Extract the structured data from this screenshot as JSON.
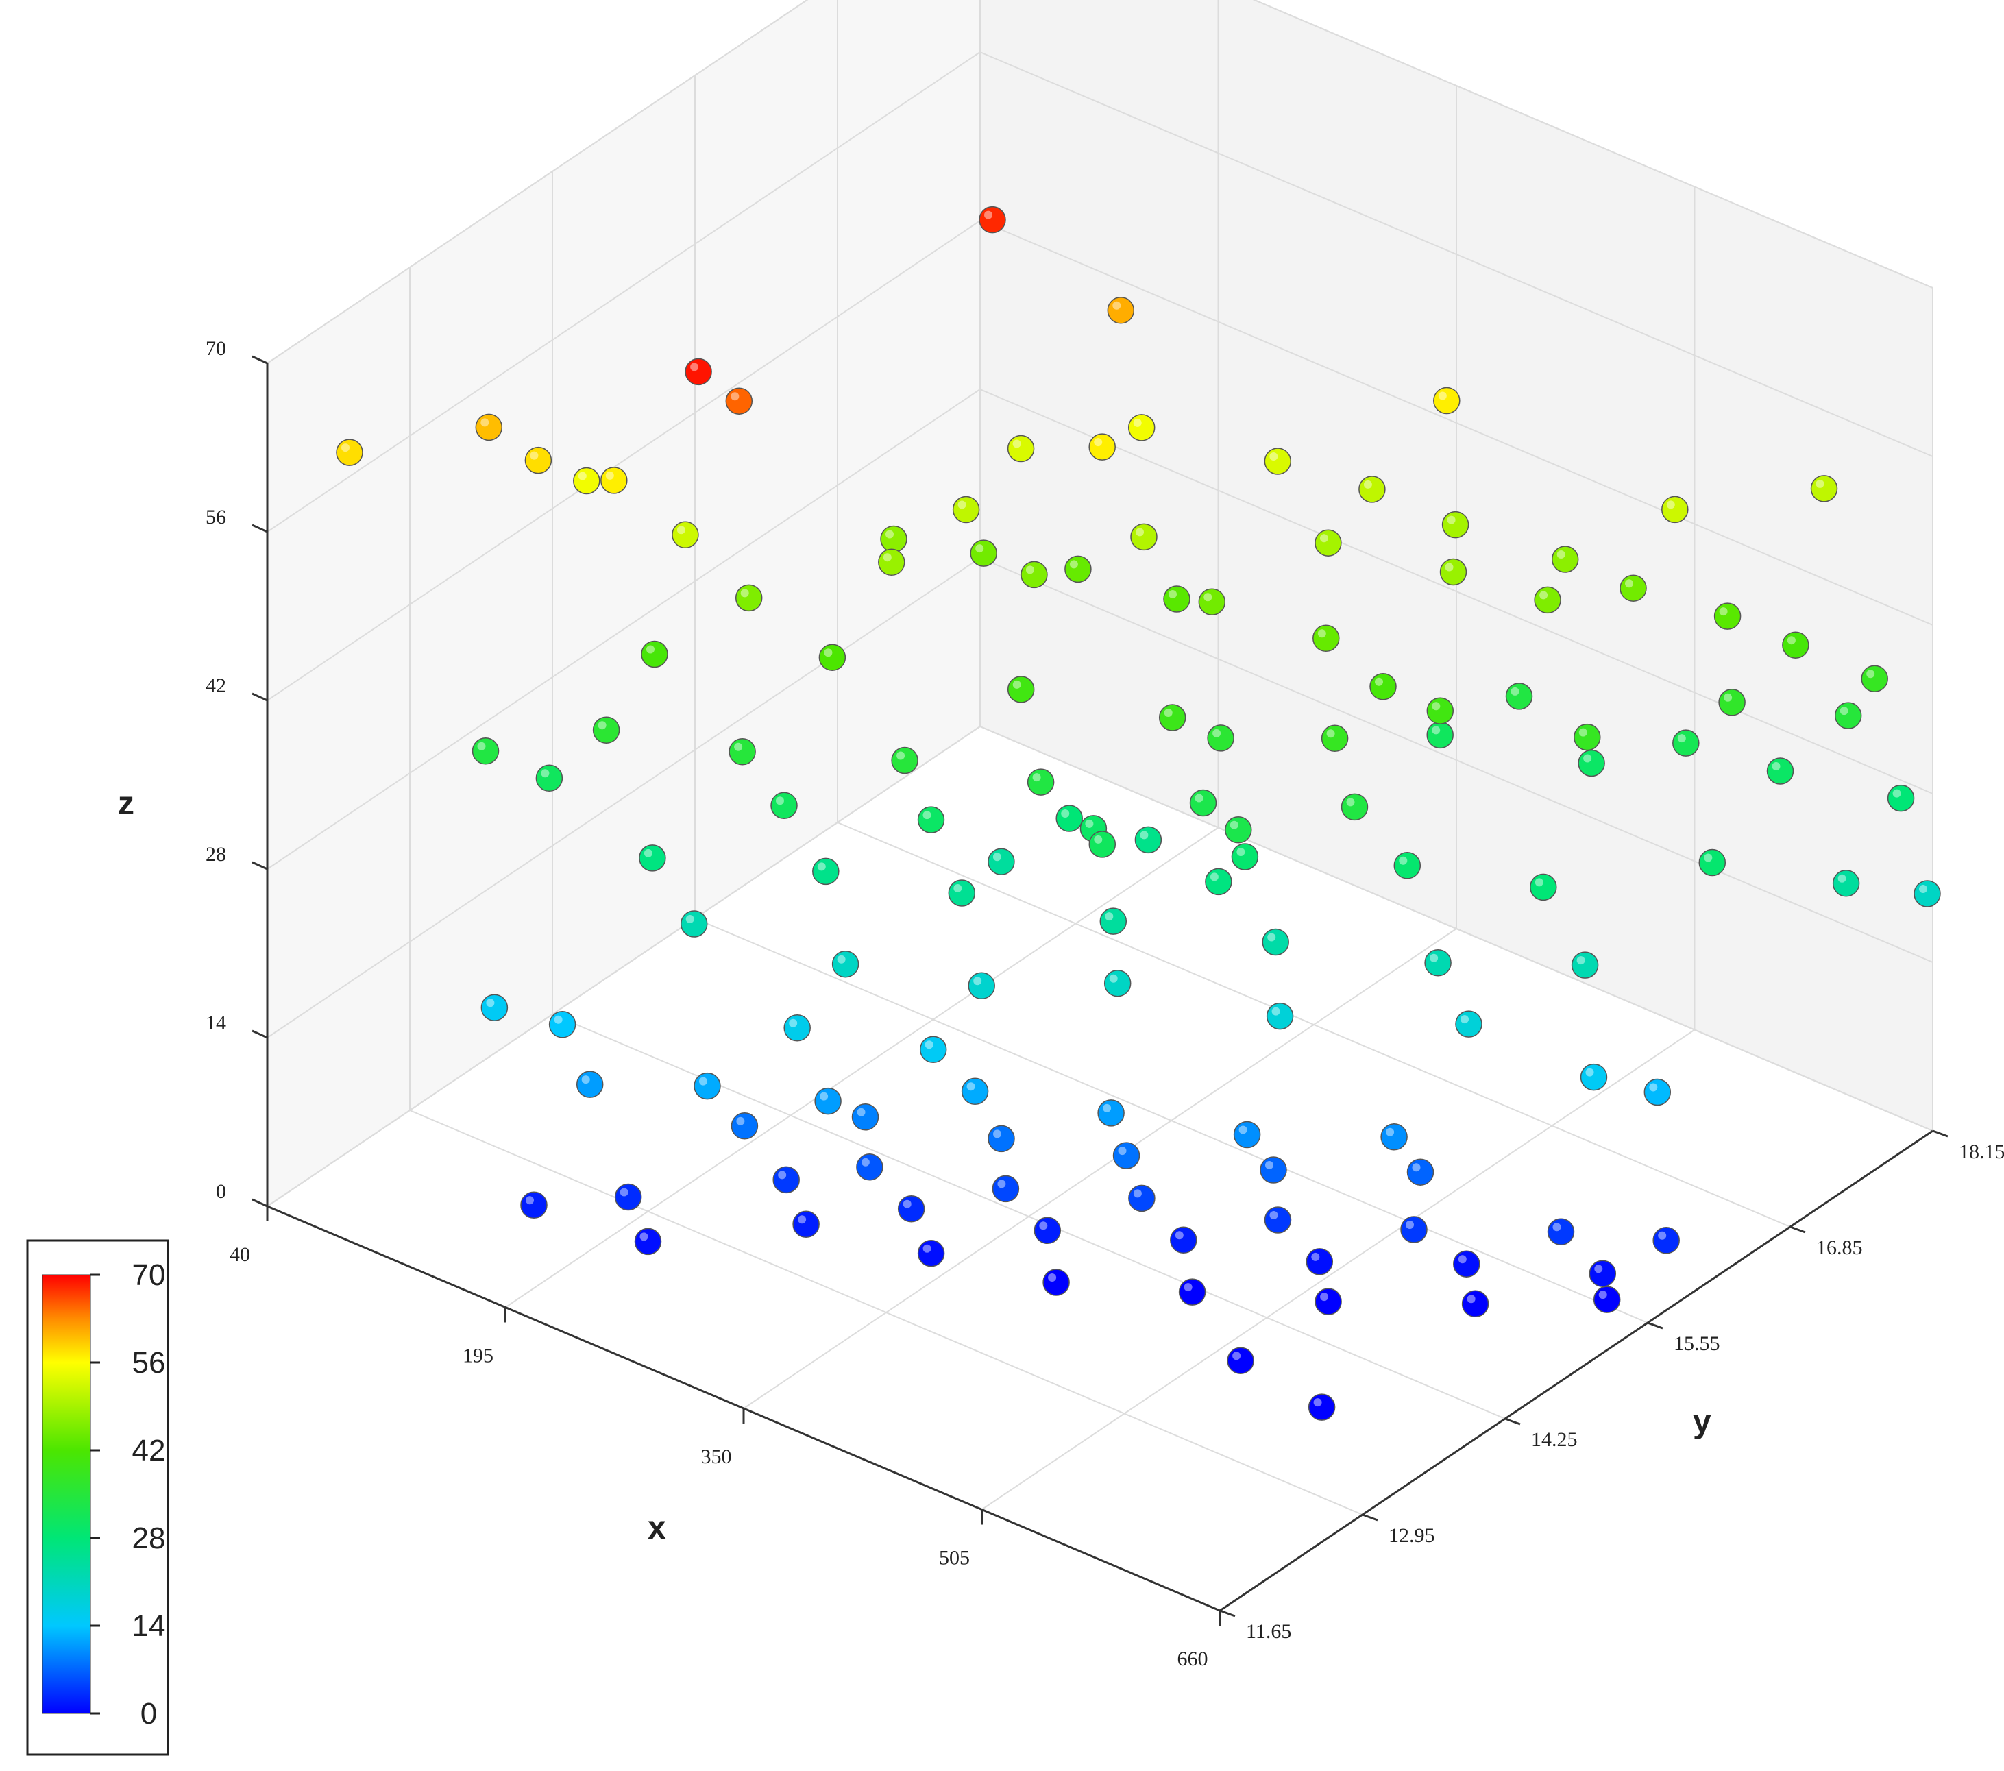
{
  "chart_data": {
    "type": "scatter",
    "title": "",
    "xlabel": "x",
    "ylabel": "y",
    "zlabel": "z",
    "xlim": [
      40,
      660
    ],
    "ylim": [
      11.65,
      18.15
    ],
    "zlim": [
      0,
      70
    ],
    "x_ticks": [
      "40",
      "195",
      "350",
      "505",
      "660"
    ],
    "y_ticks": [
      "11.65",
      "12.95",
      "14.25",
      "15.55",
      "16.85",
      "18.15"
    ],
    "z_ticks": [
      "0",
      "14",
      "28",
      "42",
      "56",
      "70"
    ],
    "colorbar": {
      "ticks": [
        "0",
        "14",
        "28",
        "42",
        "56",
        "70"
      ],
      "range": [
        0,
        70
      ],
      "colormap": "jet",
      "placement": "bottom-left"
    },
    "grid": true,
    "points": [
      [
        210,
        13.2,
        69
      ],
      [
        215,
        13.5,
        65
      ],
      [
        230,
        15.6,
        68
      ],
      [
        40,
        12.4,
        58
      ],
      [
        285,
        16.0,
        61
      ],
      [
        95,
        12.9,
        60
      ],
      [
        120,
        13.0,
        58
      ],
      [
        155,
        13.2,
        57
      ],
      [
        330,
        15.2,
        57
      ],
      [
        440,
        16.8,
        57
      ],
      [
        560,
        17.2,
        52
      ],
      [
        600,
        18.0,
        51
      ],
      [
        130,
        13.3,
        55
      ],
      [
        180,
        13.5,
        52
      ],
      [
        270,
        14.8,
        51
      ],
      [
        350,
        15.3,
        50
      ],
      [
        420,
        16.0,
        49
      ],
      [
        480,
        16.3,
        48
      ],
      [
        520,
        16.6,
        46
      ],
      [
        250,
        14.4,
        48
      ],
      [
        300,
        15.0,
        46
      ],
      [
        380,
        15.5,
        45
      ],
      [
        440,
        15.7,
        44
      ],
      [
        200,
        13.8,
        46
      ],
      [
        160,
        13.5,
        41
      ],
      [
        240,
        14.0,
        42
      ],
      [
        320,
        14.6,
        40
      ],
      [
        390,
        15.0,
        39
      ],
      [
        460,
        15.5,
        38
      ],
      [
        500,
        15.9,
        40
      ],
      [
        560,
        16.4,
        38
      ],
      [
        150,
        13.2,
        36
      ],
      [
        210,
        13.6,
        35
      ],
      [
        280,
        14.1,
        35
      ],
      [
        340,
        14.5,
        34
      ],
      [
        410,
        15.0,
        33
      ],
      [
        480,
        15.4,
        34
      ],
      [
        100,
        12.8,
        34
      ],
      [
        120,
        13.1,
        31
      ],
      [
        230,
        13.7,
        31
      ],
      [
        290,
        14.2,
        30
      ],
      [
        360,
        14.7,
        30
      ],
      [
        430,
        15.1,
        29
      ],
      [
        500,
        15.6,
        29
      ],
      [
        560,
        16.0,
        28
      ],
      [
        620,
        16.7,
        29
      ],
      [
        650,
        17.5,
        24
      ],
      [
        180,
        13.2,
        27
      ],
      [
        250,
        13.8,
        26
      ],
      [
        310,
        14.2,
        25
      ],
      [
        380,
        14.6,
        24
      ],
      [
        450,
        15.1,
        23
      ],
      [
        520,
        15.6,
        22
      ],
      [
        580,
        16.1,
        22
      ],
      [
        200,
        13.3,
        22
      ],
      [
        270,
        13.7,
        20
      ],
      [
        330,
        14.1,
        19
      ],
      [
        390,
        14.5,
        20
      ],
      [
        460,
        15.0,
        18
      ],
      [
        540,
        15.6,
        18
      ],
      [
        260,
        13.4,
        16
      ],
      [
        320,
        13.8,
        15
      ],
      [
        120,
        12.6,
        15
      ],
      [
        150,
        12.8,
        14
      ],
      [
        175,
        12.7,
        11
      ],
      [
        600,
        15.9,
        15
      ],
      [
        620,
        16.2,
        13
      ],
      [
        230,
        13.0,
        12
      ],
      [
        280,
        13.4,
        11
      ],
      [
        340,
        13.9,
        12
      ],
      [
        400,
        14.3,
        11
      ],
      [
        460,
        14.7,
        10
      ],
      [
        520,
        15.2,
        10
      ],
      [
        290,
        13.6,
        9
      ],
      [
        350,
        14.0,
        8
      ],
      [
        410,
        14.3,
        8
      ],
      [
        470,
        14.8,
        7
      ],
      [
        530,
        15.3,
        7
      ],
      [
        240,
        13.2,
        8
      ],
      [
        300,
        13.5,
        6
      ],
      [
        360,
        13.9,
        5
      ],
      [
        420,
        14.3,
        5
      ],
      [
        480,
        14.7,
        4
      ],
      [
        540,
        15.1,
        4
      ],
      [
        600,
        15.6,
        4
      ],
      [
        640,
        16.0,
        3
      ],
      [
        260,
        13.3,
        4
      ],
      [
        320,
        13.6,
        3
      ],
      [
        380,
        14.0,
        2
      ],
      [
        440,
        14.4,
        2
      ],
      [
        500,
        14.8,
        1
      ],
      [
        560,
        15.3,
        1
      ],
      [
        620,
        15.7,
        1
      ],
      [
        280,
        13.2,
        2
      ],
      [
        340,
        13.5,
        1
      ],
      [
        400,
        13.8,
        0
      ],
      [
        460,
        14.2,
        0
      ],
      [
        520,
        14.6,
        0
      ],
      [
        580,
        15.1,
        0
      ],
      [
        630,
        15.6,
        0
      ],
      [
        200,
        12.7,
        3
      ],
      [
        160,
        12.4,
        2
      ],
      [
        220,
        12.6,
        1
      ],
      [
        520,
        13.8,
        0
      ],
      [
        580,
        13.7,
        0
      ],
      [
        330,
        14.9,
        28
      ],
      [
        360,
        15.2,
        26
      ],
      [
        300,
        14.7,
        24
      ],
      [
        420,
        15.0,
        27
      ],
      [
        380,
        14.5,
        31
      ],
      [
        440,
        14.9,
        33
      ],
      [
        400,
        15.3,
        36
      ],
      [
        470,
        15.8,
        41
      ],
      [
        350,
        15.6,
        43
      ],
      [
        300,
        15.4,
        44
      ],
      [
        260,
        15.1,
        45
      ],
      [
        230,
        14.7,
        47
      ],
      [
        270,
        15.3,
        53
      ],
      [
        320,
        15.7,
        55
      ],
      [
        380,
        16.1,
        53
      ],
      [
        420,
        16.4,
        51
      ],
      [
        460,
        16.6,
        49
      ],
      [
        510,
        16.9,
        47
      ],
      [
        540,
        17.1,
        45
      ],
      [
        580,
        17.4,
        43
      ],
      [
        610,
        17.6,
        41
      ],
      [
        590,
        17.3,
        37
      ],
      [
        630,
        17.8,
        35
      ],
      [
        480,
        16.9,
        34
      ],
      [
        450,
        16.6,
        31
      ],
      [
        520,
        17.0,
        30
      ],
      [
        560,
        17.3,
        32
      ],
      [
        600,
        17.6,
        30
      ],
      [
        650,
        18.0,
        28
      ],
      [
        660,
        18.1,
        20
      ],
      [
        640,
        17.9,
        38
      ]
    ]
  }
}
